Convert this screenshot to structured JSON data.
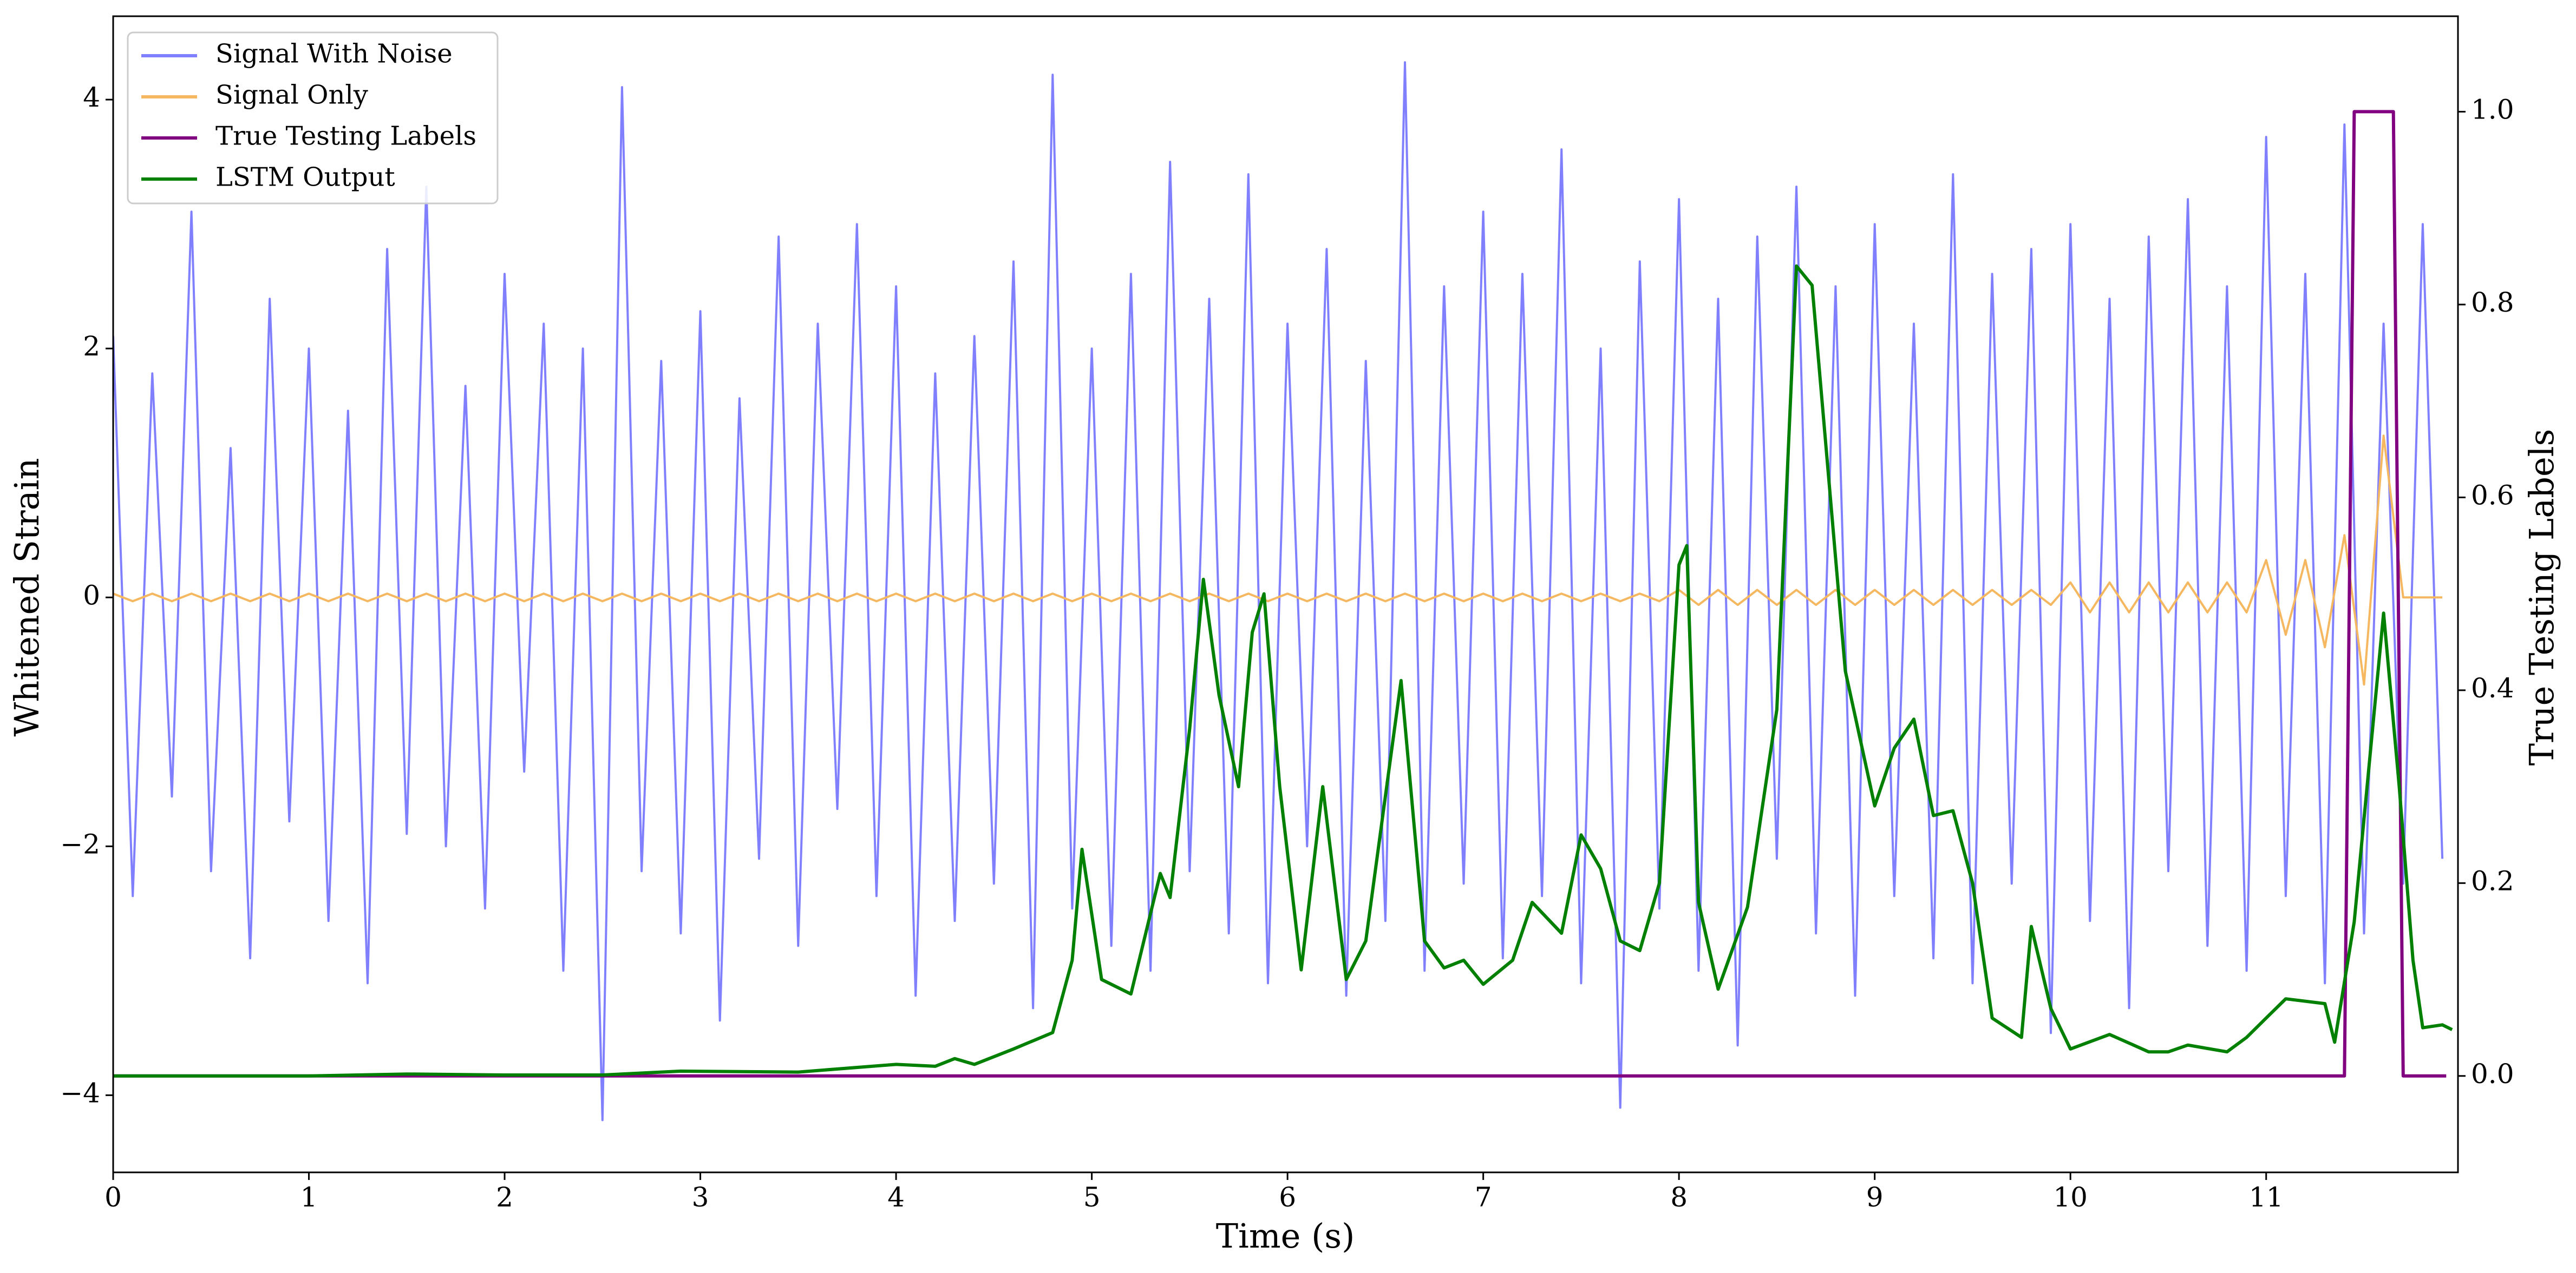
{
  "chart_data": {
    "type": "line",
    "xlabel": "Time (s)",
    "ylabel": "Whitened Strain",
    "y2label": "True Testing Labels",
    "x": [
      0,
      0.1,
      0.2,
      0.3,
      0.4,
      0.5,
      0.6,
      0.7,
      0.8,
      0.9,
      1,
      1.1,
      1.2,
      1.3,
      1.4,
      1.5,
      1.6,
      1.7,
      1.8,
      1.9,
      2,
      2.1,
      2.2,
      2.3,
      2.4,
      2.5,
      2.6,
      2.7,
      2.8,
      2.9,
      3,
      3.1,
      3.2,
      3.3,
      3.4,
      3.5,
      3.6,
      3.7,
      3.8,
      3.9,
      4,
      4.1,
      4.2,
      4.3,
      4.4,
      4.5,
      4.6,
      4.7,
      4.8,
      4.9,
      5,
      5.1,
      5.2,
      5.3,
      5.4,
      5.5,
      5.6,
      5.7,
      5.8,
      5.9,
      6,
      6.1,
      6.2,
      6.3,
      6.4,
      6.5,
      6.6,
      6.7,
      6.8,
      6.9,
      7,
      7.1,
      7.2,
      7.3,
      7.4,
      7.5,
      7.6,
      7.7,
      7.8,
      7.9,
      8,
      8.1,
      8.2,
      8.3,
      8.4,
      8.5,
      8.6,
      8.7,
      8.8,
      8.9,
      9,
      9.1,
      9.2,
      9.3,
      9.4,
      9.5,
      9.6,
      9.7,
      9.8,
      9.9,
      10,
      10.1,
      10.2,
      10.3,
      10.4,
      10.5,
      10.6,
      10.7,
      10.8,
      10.9,
      11,
      11.1,
      11.2,
      11.3,
      11.4,
      11.5,
      11.6,
      11.7,
      11.8,
      11.9
    ],
    "series": [
      {
        "name": "Signal With Noise",
        "color": "#8080ff",
        "values": [
          2.1,
          -2.4,
          1.8,
          -1.6,
          3.1,
          -2.2,
          1.2,
          -2.9,
          2.4,
          -1.8,
          2.0,
          -2.6,
          1.5,
          -3.1,
          2.8,
          -1.9,
          3.3,
          -2.0,
          1.7,
          -2.5,
          2.6,
          -1.4,
          2.2,
          -3.0,
          2.0,
          -4.2,
          4.1,
          -2.2,
          1.9,
          -2.7,
          2.3,
          -3.4,
          1.6,
          -2.1,
          2.9,
          -2.8,
          2.2,
          -1.7,
          3.0,
          -2.4,
          2.5,
          -3.2,
          1.8,
          -2.6,
          2.1,
          -2.3,
          2.7,
          -3.3,
          4.2,
          -2.5,
          2.0,
          -2.8,
          2.6,
          -3.0,
          3.5,
          -2.2,
          2.4,
          -2.7,
          3.4,
          -3.1,
          2.2,
          -2.0,
          2.8,
          -3.2,
          1.9,
          -2.6,
          4.3,
          -3.0,
          2.5,
          -2.3,
          3.1,
          -2.9,
          2.6,
          -2.4,
          3.6,
          -3.1,
          2.0,
          -4.1,
          2.7,
          -2.5,
          3.2,
          -3.0,
          2.4,
          -3.6,
          2.9,
          -2.1,
          3.3,
          -2.7,
          2.5,
          -3.2,
          3.0,
          -2.4,
          2.2,
          -2.9,
          3.4,
          -3.1,
          2.6,
          -2.3,
          2.8,
          -3.5,
          3.0,
          -2.6,
          2.4,
          -3.3,
          2.9,
          -2.2,
          3.2,
          -2.8,
          2.5,
          -3.0,
          3.7,
          -2.4,
          2.6,
          -3.1,
          3.8,
          -2.7,
          2.2,
          -2.3,
          3.0,
          -2.1
        ]
      },
      {
        "name": "Signal Only",
        "color": "#f5b860",
        "values": [
          0.03,
          -0.03,
          0.03,
          -0.03,
          0.03,
          -0.03,
          0.03,
          -0.03,
          0.03,
          -0.03,
          0.03,
          -0.03,
          0.03,
          -0.03,
          0.03,
          -0.03,
          0.03,
          -0.03,
          0.03,
          -0.03,
          0.03,
          -0.03,
          0.03,
          -0.03,
          0.03,
          -0.03,
          0.03,
          -0.03,
          0.03,
          -0.03,
          0.03,
          -0.03,
          0.03,
          -0.03,
          0.03,
          -0.03,
          0.03,
          -0.03,
          0.03,
          -0.03,
          0.03,
          -0.03,
          0.03,
          -0.03,
          0.03,
          -0.03,
          0.03,
          -0.03,
          0.03,
          -0.03,
          0.03,
          -0.03,
          0.03,
          -0.03,
          0.03,
          -0.03,
          0.03,
          -0.03,
          0.03,
          -0.03,
          0.03,
          -0.03,
          0.03,
          -0.03,
          0.03,
          -0.03,
          0.03,
          -0.03,
          0.03,
          -0.03,
          0.03,
          -0.03,
          0.03,
          -0.03,
          0.03,
          -0.03,
          0.03,
          -0.03,
          0.03,
          -0.03,
          0.06,
          -0.06,
          0.06,
          -0.06,
          0.06,
          -0.06,
          0.06,
          -0.06,
          0.06,
          -0.06,
          0.06,
          -0.06,
          0.06,
          -0.06,
          0.06,
          -0.06,
          0.06,
          -0.06,
          0.06,
          -0.06,
          0.12,
          -0.12,
          0.12,
          -0.12,
          0.12,
          -0.12,
          0.12,
          -0.12,
          0.12,
          -0.12,
          0.3,
          -0.3,
          0.3,
          -0.4,
          0.5,
          -0.7,
          1.3,
          0,
          0,
          0
        ]
      },
      {
        "name": "True Testing Labels",
        "color": "#800080",
        "axis": "y2",
        "x": [
          0,
          11.4,
          11.45,
          11.65,
          11.7,
          11.92
        ],
        "values": [
          0,
          0,
          1,
          1,
          0,
          0
        ]
      },
      {
        "name": "LSTM Output",
        "color": "#008000",
        "axis": "y2",
        "x": [
          0,
          1,
          1.5,
          2,
          2.5,
          2.9,
          3.5,
          4.0,
          4.2,
          4.3,
          4.4,
          4.6,
          4.8,
          4.9,
          4.95,
          5.05,
          5.2,
          5.35,
          5.4,
          5.5,
          5.57,
          5.65,
          5.75,
          5.82,
          5.88,
          5.96,
          6.07,
          6.18,
          6.3,
          6.4,
          6.58,
          6.7,
          6.8,
          6.9,
          7.0,
          7.15,
          7.25,
          7.4,
          7.5,
          7.6,
          7.7,
          7.8,
          7.9,
          8.0,
          8.04,
          8.1,
          8.2,
          8.35,
          8.5,
          8.6,
          8.68,
          8.85,
          9.0,
          9.1,
          9.2,
          9.3,
          9.4,
          9.5,
          9.6,
          9.75,
          9.8,
          9.9,
          10.0,
          10.2,
          10.4,
          10.5,
          10.6,
          10.8,
          10.9,
          11.0,
          11.1,
          11.3,
          11.35,
          11.45,
          11.6,
          11.68,
          11.75,
          11.8,
          11.9,
          11.95
        ],
        "values": [
          0,
          0,
          0.002,
          0.001,
          0.001,
          0.005,
          0.004,
          0.012,
          0.01,
          0.018,
          0.012,
          0.028,
          0.045,
          0.12,
          0.235,
          0.1,
          0.085,
          0.21,
          0.185,
          0.36,
          0.515,
          0.395,
          0.3,
          0.46,
          0.5,
          0.3,
          0.11,
          0.3,
          0.1,
          0.14,
          0.41,
          0.14,
          0.112,
          0.12,
          0.095,
          0.12,
          0.18,
          0.148,
          0.25,
          0.215,
          0.14,
          0.13,
          0.2,
          0.53,
          0.55,
          0.18,
          0.09,
          0.175,
          0.38,
          0.84,
          0.82,
          0.42,
          0.28,
          0.34,
          0.37,
          0.27,
          0.275,
          0.2,
          0.06,
          0.04,
          0.155,
          0.07,
          0.028,
          0.043,
          0.025,
          0.025,
          0.032,
          0.025,
          0.04,
          0.06,
          0.08,
          0.075,
          0.035,
          0.16,
          0.48,
          0.3,
          0.12,
          0.05,
          0.053,
          0.048
        ]
      }
    ],
    "xlim": [
      0,
      11.98
    ],
    "xticks": [
      0,
      1,
      2,
      3,
      4,
      5,
      6,
      7,
      8,
      9,
      10,
      11
    ],
    "ylim": [
      -4.62,
      4.67
    ],
    "yticks": [
      {
        "value": -4,
        "label": "−4"
      },
      {
        "value": -2,
        "label": "−2"
      },
      0,
      2,
      4
    ],
    "y2lim": [
      -0.1,
      1.099
    ],
    "y2ticks": [
      {
        "value": 0,
        "label": "0.0"
      },
      {
        "value": 0.2,
        "label": "0.2"
      },
      {
        "value": 0.4,
        "label": "0.4"
      },
      {
        "value": 0.6,
        "label": "0.6"
      },
      {
        "value": 0.8,
        "label": "0.8"
      },
      {
        "value": 1,
        "label": "1.0"
      }
    ],
    "legend": "upper left",
    "grid": false
  }
}
